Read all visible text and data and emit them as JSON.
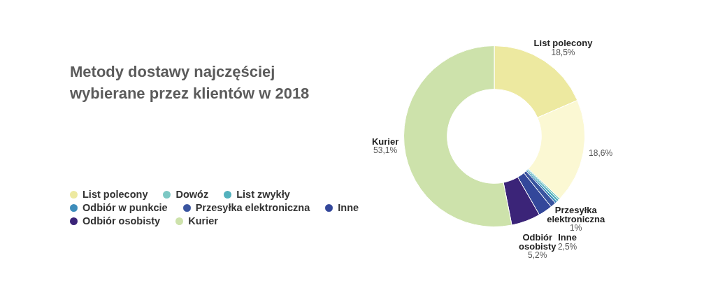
{
  "chart_data": {
    "type": "donut",
    "title": "Metody dostawy najczęściej wybierane przez klientów w 2018",
    "categories": [
      "List polecony",
      null,
      "Dowóz",
      "List zwykły",
      "Odbiór w punkcie",
      "Przesyłka elektroniczna",
      "Inne",
      "Odbiór osobisty",
      "Kurier"
    ],
    "values": [
      18.5,
      18.6,
      0.3,
      0.4,
      0.4,
      1,
      2.5,
      5.2,
      53.1
    ],
    "colors": [
      "#ede9a0",
      "#fbf8d3",
      "#7cc8c4",
      "#53b1bd",
      "#3d8dbb",
      "#3a55a0",
      "#33479a",
      "#3b2478",
      "#cde2ab"
    ],
    "value_labels": [
      "18,5%",
      "18,6%",
      null,
      null,
      null,
      "1%",
      "2,5%",
      "5,2%",
      "53,1%"
    ],
    "legend": "bottom left"
  }
}
